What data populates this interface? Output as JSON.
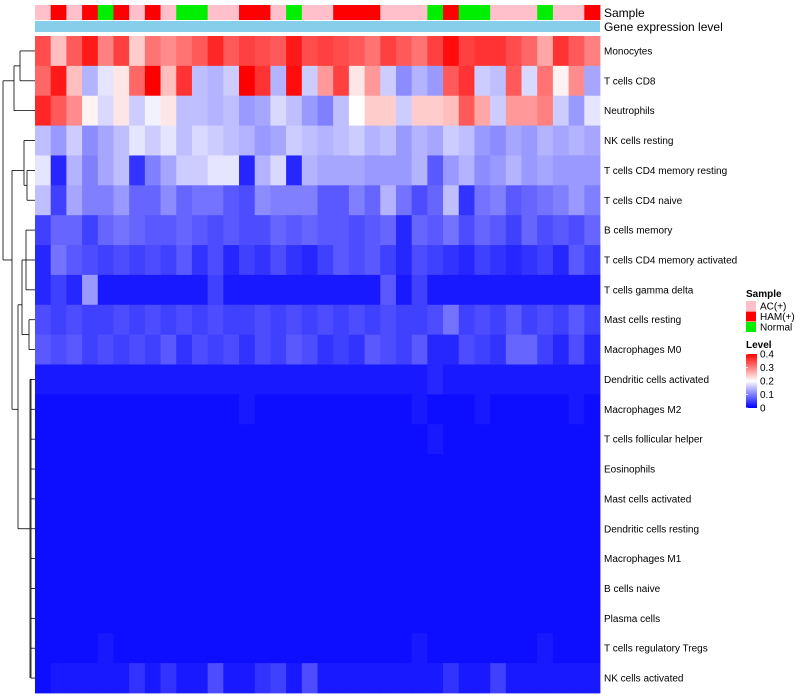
{
  "chart_data": {
    "type": "heatmap",
    "annotation_labels": {
      "sample": "Sample",
      "gene": "Gene expression level"
    },
    "rows": [
      "Monocytes",
      "T cells CD8",
      "Neutrophils",
      "NK cells resting",
      "T cells CD4 memory resting",
      "T cells CD4 naive",
      "B cells memory",
      "T cells CD4 memory activated",
      "T cells gamma delta",
      "Mast cells resting",
      "Macrophages M0",
      "Dendritic cells activated",
      "Macrophages M2",
      "T cells follicular helper",
      "Eosinophils",
      "Mast cells activated",
      "Dendritic cells resting",
      "Macrophages M1",
      "B cells naive",
      "Plasma cells",
      "T cells regulatory  Tregs",
      "NK cells activated"
    ],
    "samples": [
      "AC(+)",
      "HAM(+)",
      "AC(+)",
      "HAM(+)",
      "Normal",
      "HAM(+)",
      "AC(+)",
      "HAM(+)",
      "AC(+)",
      "Normal",
      "Normal",
      "AC(+)",
      "AC(+)",
      "HAM(+)",
      "HAM(+)",
      "AC(+)",
      "Normal",
      "AC(+)",
      "AC(+)",
      "HAM(+)",
      "HAM(+)",
      "HAM(+)",
      "AC(+)",
      "AC(+)",
      "AC(+)",
      "Normal",
      "HAM(+)",
      "Normal",
      "Normal",
      "AC(+)",
      "AC(+)",
      "AC(+)",
      "Normal",
      "AC(+)",
      "AC(+)",
      "HAM(+)"
    ],
    "values": [
      [
        0.34,
        0.25,
        0.33,
        0.38,
        0.3,
        0.35,
        0.24,
        0.31,
        0.29,
        0.31,
        0.33,
        0.37,
        0.33,
        0.35,
        0.34,
        0.33,
        0.38,
        0.34,
        0.35,
        0.34,
        0.33,
        0.31,
        0.35,
        0.33,
        0.31,
        0.35,
        0.39,
        0.35,
        0.36,
        0.36,
        0.34,
        0.32,
        0.27,
        0.36,
        0.33,
        0.3
      ],
      [
        0.32,
        0.38,
        0.25,
        0.14,
        0.18,
        0.22,
        0.32,
        0.4,
        0.25,
        0.36,
        0.15,
        0.14,
        0.16,
        0.4,
        0.36,
        0.14,
        0.39,
        0.16,
        0.28,
        0.35,
        0.22,
        0.28,
        0.16,
        0.11,
        0.14,
        0.12,
        0.33,
        0.36,
        0.16,
        0.15,
        0.33,
        0.17,
        0.31,
        0.21,
        0.29,
        0.13
      ],
      [
        0.37,
        0.33,
        0.29,
        0.21,
        0.17,
        0.22,
        0.16,
        0.19,
        0.22,
        0.15,
        0.15,
        0.14,
        0.15,
        0.12,
        0.13,
        0.17,
        0.15,
        0.12,
        0.1,
        0.15,
        0.2,
        0.24,
        0.24,
        0.16,
        0.24,
        0.24,
        0.25,
        0.33,
        0.27,
        0.16,
        0.28,
        0.28,
        0.3,
        0.16,
        0.12,
        0.18
      ],
      [
        0.15,
        0.12,
        0.16,
        0.11,
        0.13,
        0.15,
        0.18,
        0.16,
        0.18,
        0.15,
        0.17,
        0.16,
        0.15,
        0.14,
        0.12,
        0.13,
        0.16,
        0.15,
        0.14,
        0.15,
        0.16,
        0.14,
        0.15,
        0.12,
        0.14,
        0.13,
        0.16,
        0.15,
        0.12,
        0.11,
        0.13,
        0.12,
        0.14,
        0.13,
        0.14,
        0.13
      ],
      [
        0.18,
        0.03,
        0.14,
        0.1,
        0.13,
        0.15,
        0.04,
        0.1,
        0.13,
        0.16,
        0.16,
        0.18,
        0.18,
        0.03,
        0.14,
        0.17,
        0.03,
        0.14,
        0.13,
        0.13,
        0.13,
        0.12,
        0.12,
        0.12,
        0.14,
        0.07,
        0.12,
        0.14,
        0.11,
        0.12,
        0.14,
        0.12,
        0.13,
        0.12,
        0.12,
        0.12
      ],
      [
        0.15,
        0.05,
        0.13,
        0.1,
        0.1,
        0.12,
        0.08,
        0.08,
        0.11,
        0.08,
        0.09,
        0.09,
        0.07,
        0.06,
        0.11,
        0.1,
        0.1,
        0.1,
        0.07,
        0.07,
        0.1,
        0.08,
        0.14,
        0.09,
        0.06,
        0.08,
        0.15,
        0.04,
        0.09,
        0.1,
        0.07,
        0.08,
        0.09,
        0.1,
        0.12,
        0.1
      ],
      [
        0.05,
        0.08,
        0.08,
        0.05,
        0.08,
        0.09,
        0.08,
        0.07,
        0.07,
        0.08,
        0.07,
        0.06,
        0.07,
        0.06,
        0.06,
        0.08,
        0.07,
        0.08,
        0.07,
        0.07,
        0.06,
        0.07,
        0.08,
        0.03,
        0.08,
        0.07,
        0.09,
        0.06,
        0.08,
        0.07,
        0.05,
        0.08,
        0.06,
        0.07,
        0.06,
        0.08
      ],
      [
        0.03,
        0.09,
        0.07,
        0.06,
        0.05,
        0.06,
        0.05,
        0.06,
        0.05,
        0.07,
        0.04,
        0.06,
        0.03,
        0.05,
        0.04,
        0.06,
        0.04,
        0.03,
        0.05,
        0.07,
        0.06,
        0.07,
        0.05,
        0.03,
        0.06,
        0.05,
        0.04,
        0.03,
        0.05,
        0.04,
        0.03,
        0.04,
        0.05,
        0.03,
        0.07,
        0.05
      ],
      [
        0.03,
        0.05,
        0.03,
        0.12,
        0.02,
        0.02,
        0.02,
        0.02,
        0.02,
        0.02,
        0.02,
        0.05,
        0.02,
        0.02,
        0.02,
        0.02,
        0.02,
        0.02,
        0.02,
        0.02,
        0.02,
        0.02,
        0.07,
        0.02,
        0.05,
        0.02,
        0.02,
        0.02,
        0.02,
        0.02,
        0.02,
        0.02,
        0.02,
        0.02,
        0.02,
        0.02
      ],
      [
        0.06,
        0.05,
        0.06,
        0.05,
        0.05,
        0.06,
        0.05,
        0.06,
        0.05,
        0.06,
        0.05,
        0.06,
        0.05,
        0.05,
        0.06,
        0.05,
        0.06,
        0.05,
        0.06,
        0.05,
        0.06,
        0.05,
        0.06,
        0.05,
        0.05,
        0.06,
        0.09,
        0.05,
        0.06,
        0.05,
        0.07,
        0.05,
        0.06,
        0.05,
        0.07,
        0.05
      ],
      [
        0.07,
        0.06,
        0.07,
        0.05,
        0.06,
        0.05,
        0.06,
        0.05,
        0.07,
        0.04,
        0.06,
        0.05,
        0.06,
        0.04,
        0.06,
        0.05,
        0.07,
        0.06,
        0.04,
        0.05,
        0.04,
        0.07,
        0.06,
        0.05,
        0.07,
        0.03,
        0.03,
        0.06,
        0.05,
        0.04,
        0.08,
        0.08,
        0.05,
        0.03,
        0.06,
        0.03
      ],
      [
        0.02,
        0.02,
        0.02,
        0.02,
        0.02,
        0.02,
        0.02,
        0.02,
        0.02,
        0.02,
        0.02,
        0.02,
        0.02,
        0.02,
        0.02,
        0.02,
        0.02,
        0.02,
        0.02,
        0.02,
        0.02,
        0.02,
        0.02,
        0.02,
        0.02,
        0.03,
        0.02,
        0.02,
        0.02,
        0.02,
        0.02,
        0.02,
        0.02,
        0.02,
        0.02,
        0.02
      ],
      [
        0.01,
        0.01,
        0.01,
        0.01,
        0.01,
        0.01,
        0.01,
        0.01,
        0.01,
        0.01,
        0.01,
        0.01,
        0.01,
        0.02,
        0.01,
        0.01,
        0.01,
        0.01,
        0.01,
        0.01,
        0.01,
        0.01,
        0.01,
        0.01,
        0.02,
        0.01,
        0.01,
        0.01,
        0.02,
        0.01,
        0.01,
        0.01,
        0.01,
        0.01,
        0.02,
        0.01
      ],
      [
        0.01,
        0.01,
        0.01,
        0.01,
        0.01,
        0.01,
        0.01,
        0.01,
        0.01,
        0.01,
        0.01,
        0.01,
        0.01,
        0.01,
        0.01,
        0.01,
        0.01,
        0.01,
        0.01,
        0.01,
        0.01,
        0.01,
        0.01,
        0.01,
        0.01,
        0.02,
        0.01,
        0.01,
        0.01,
        0.01,
        0.01,
        0.01,
        0.01,
        0.01,
        0.01,
        0.01
      ],
      [
        0.01,
        0.01,
        0.01,
        0.01,
        0.01,
        0.01,
        0.01,
        0.01,
        0.01,
        0.01,
        0.01,
        0.01,
        0.01,
        0.01,
        0.01,
        0.01,
        0.01,
        0.01,
        0.01,
        0.01,
        0.01,
        0.01,
        0.01,
        0.01,
        0.01,
        0.01,
        0.01,
        0.01,
        0.01,
        0.01,
        0.01,
        0.01,
        0.01,
        0.01,
        0.01,
        0.01
      ],
      [
        0.01,
        0.01,
        0.01,
        0.01,
        0.01,
        0.01,
        0.01,
        0.01,
        0.01,
        0.01,
        0.01,
        0.01,
        0.01,
        0.01,
        0.01,
        0.01,
        0.01,
        0.01,
        0.01,
        0.01,
        0.01,
        0.01,
        0.01,
        0.01,
        0.01,
        0.01,
        0.01,
        0.01,
        0.01,
        0.01,
        0.01,
        0.01,
        0.01,
        0.01,
        0.01,
        0.01
      ],
      [
        0.01,
        0.01,
        0.01,
        0.01,
        0.01,
        0.01,
        0.01,
        0.01,
        0.01,
        0.01,
        0.01,
        0.01,
        0.01,
        0.01,
        0.01,
        0.01,
        0.01,
        0.01,
        0.01,
        0.01,
        0.01,
        0.01,
        0.01,
        0.01,
        0.01,
        0.01,
        0.01,
        0.01,
        0.01,
        0.01,
        0.01,
        0.01,
        0.01,
        0.01,
        0.01,
        0.01
      ],
      [
        0.01,
        0.01,
        0.01,
        0.01,
        0.01,
        0.01,
        0.01,
        0.01,
        0.01,
        0.01,
        0.01,
        0.01,
        0.01,
        0.01,
        0.01,
        0.01,
        0.01,
        0.01,
        0.01,
        0.01,
        0.01,
        0.01,
        0.01,
        0.01,
        0.01,
        0.01,
        0.01,
        0.01,
        0.01,
        0.01,
        0.01,
        0.01,
        0.01,
        0.01,
        0.01,
        0.01
      ],
      [
        0.01,
        0.01,
        0.01,
        0.01,
        0.01,
        0.01,
        0.01,
        0.01,
        0.01,
        0.01,
        0.01,
        0.01,
        0.01,
        0.01,
        0.01,
        0.01,
        0.01,
        0.01,
        0.01,
        0.01,
        0.01,
        0.01,
        0.01,
        0.01,
        0.01,
        0.01,
        0.01,
        0.01,
        0.01,
        0.01,
        0.01,
        0.01,
        0.01,
        0.01,
        0.01,
        0.01
      ],
      [
        0.01,
        0.01,
        0.01,
        0.01,
        0.01,
        0.01,
        0.01,
        0.01,
        0.01,
        0.01,
        0.01,
        0.01,
        0.01,
        0.01,
        0.01,
        0.01,
        0.01,
        0.01,
        0.01,
        0.01,
        0.01,
        0.01,
        0.01,
        0.01,
        0.01,
        0.01,
        0.01,
        0.01,
        0.01,
        0.01,
        0.01,
        0.01,
        0.01,
        0.01,
        0.01,
        0.01
      ],
      [
        0.01,
        0.01,
        0.01,
        0.01,
        0.02,
        0.01,
        0.01,
        0.01,
        0.01,
        0.01,
        0.01,
        0.01,
        0.01,
        0.01,
        0.01,
        0.01,
        0.01,
        0.01,
        0.01,
        0.01,
        0.01,
        0.01,
        0.01,
        0.01,
        0.02,
        0.01,
        0.01,
        0.01,
        0.01,
        0.01,
        0.01,
        0.01,
        0.02,
        0.01,
        0.01,
        0.01
      ],
      [
        0.01,
        0.02,
        0.02,
        0.02,
        0.02,
        0.02,
        0.04,
        0.02,
        0.04,
        0.02,
        0.02,
        0.06,
        0.02,
        0.02,
        0.04,
        0.05,
        0.02,
        0.06,
        0.02,
        0.02,
        0.02,
        0.02,
        0.02,
        0.02,
        0.02,
        0.02,
        0.04,
        0.02,
        0.02,
        0.05,
        0.02,
        0.02,
        0.02,
        0.02,
        0.02,
        0.02
      ]
    ],
    "value_range": [
      0,
      0.4
    ],
    "sample_colors": {
      "AC(+)": "#FFC0CB",
      "HAM(+)": "#FF0000",
      "Normal": "#00EE00"
    },
    "gene_bar_color": "#87CEEB",
    "color_scale": {
      "low": "#0000FF",
      "mid": "#FFFFFF",
      "high": "#FF0000"
    },
    "legend": {
      "sample_title": "Sample",
      "sample_items": [
        "AC(+)",
        "HAM(+)",
        "Normal"
      ],
      "level_title": "Level",
      "level_ticks": [
        "0.4",
        "0.3",
        "0.2",
        "0.1",
        "0"
      ],
      "level_values": [
        0.4,
        0.3,
        0.2,
        0.1,
        0
      ]
    }
  }
}
